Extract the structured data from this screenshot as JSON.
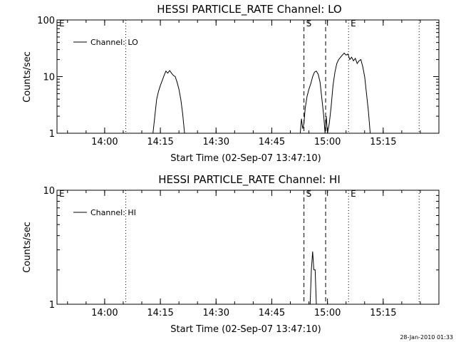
{
  "footer": {
    "timestamp": "28-Jan-2010 01:33"
  },
  "chart_data": [
    {
      "type": "line",
      "title": "HESSI PARTICLE_RATE Channel: LO",
      "xlabel": "Start Time (02-Sep-07 13:47:10)",
      "ylabel": "Counts/sec",
      "yscale": "log",
      "ylim": [
        1,
        100
      ],
      "yticks": [
        {
          "value": 1,
          "label": "1"
        },
        {
          "value": 10,
          "label": "10"
        },
        {
          "value": 100,
          "label": "100"
        }
      ],
      "xlim": [
        "13:47:10",
        "15:30:00"
      ],
      "xticks": [
        "14:00",
        "14:15",
        "14:30",
        "14:45",
        "15:00",
        "15:15"
      ],
      "legend": {
        "position": "top-left",
        "entries": [
          "Channel: LO"
        ]
      },
      "markers": [
        {
          "label": "E",
          "time": "13:47:10",
          "style": "dotted"
        },
        {
          "label": "",
          "time": "14:05:40",
          "style": "dotted"
        },
        {
          "label": "S",
          "time": "14:53:40",
          "style": "dashed"
        },
        {
          "label": "",
          "time": "14:59:30",
          "style": "dashed"
        },
        {
          "label": "E",
          "time": "15:05:40",
          "style": "dotted"
        },
        {
          "label": "",
          "time": "15:24:40",
          "style": "dotted"
        }
      ],
      "series": [
        {
          "name": "Channel: LO",
          "segments": [
            [
              [
                "14:13:00",
                1
              ],
              [
                "14:13:30",
                2.0
              ],
              [
                "14:14:00",
                4.0
              ],
              [
                "14:14:30",
                5.5
              ],
              [
                "14:15:00",
                7.0
              ],
              [
                "14:15:30",
                8.5
              ],
              [
                "14:16:00",
                10.5
              ],
              [
                "14:16:30",
                12.5
              ],
              [
                "14:17:00",
                11.5
              ],
              [
                "14:17:30",
                12.8
              ],
              [
                "14:18:00",
                11.5
              ],
              [
                "14:18:30",
                10.5
              ],
              [
                "14:19:00",
                10.0
              ],
              [
                "14:19:30",
                8.0
              ],
              [
                "14:20:00",
                6.0
              ],
              [
                "14:20:30",
                4.0
              ],
              [
                "14:21:00",
                2.2
              ],
              [
                "14:21:30",
                1
              ]
            ],
            [
              [
                "14:52:40",
                1
              ],
              [
                "14:53:00",
                1.8
              ],
              [
                "14:53:20",
                1.2
              ],
              [
                "14:53:40",
                1.5
              ],
              [
                "14:54:00",
                2.8
              ],
              [
                "14:54:30",
                4.5
              ],
              [
                "14:55:00",
                6.0
              ],
              [
                "14:55:30",
                7.5
              ],
              [
                "14:56:00",
                10.0
              ],
              [
                "14:56:30",
                12.0
              ],
              [
                "14:57:00",
                12.5
              ],
              [
                "14:57:30",
                11.0
              ],
              [
                "14:58:00",
                8.0
              ],
              [
                "14:58:30",
                4.0
              ],
              [
                "14:59:00",
                2.0
              ],
              [
                "14:59:20",
                1
              ],
              [
                "14:59:40",
                2.0
              ],
              [
                "15:00:00",
                1
              ],
              [
                "15:00:30",
                1.5
              ],
              [
                "15:01:00",
                3.0
              ],
              [
                "15:01:30",
                7.0
              ],
              [
                "15:02:00",
                12.0
              ],
              [
                "15:02:30",
                17.0
              ],
              [
                "15:03:00",
                20.0
              ],
              [
                "15:03:30",
                22.0
              ],
              [
                "15:04:00",
                24.0
              ],
              [
                "15:04:30",
                26.0
              ],
              [
                "15:05:00",
                24.0
              ],
              [
                "15:05:30",
                25.0
              ],
              [
                "15:06:00",
                20.0
              ],
              [
                "15:06:30",
                22.0
              ],
              [
                "15:07:00",
                19.0
              ],
              [
                "15:07:30",
                21.0
              ],
              [
                "15:08:00",
                17.0
              ],
              [
                "15:08:30",
                19.0
              ],
              [
                "15:09:00",
                20.0
              ],
              [
                "15:09:30",
                15.0
              ],
              [
                "15:10:00",
                10.0
              ],
              [
                "15:10:30",
                5.0
              ],
              [
                "15:11:00",
                2.5
              ],
              [
                "15:11:30",
                1
              ]
            ]
          ]
        }
      ]
    },
    {
      "type": "line",
      "title": "HESSI PARTICLE_RATE Channel: HI",
      "xlabel": "Start Time (02-Sep-07 13:47:10)",
      "ylabel": "Counts/sec",
      "yscale": "log",
      "ylim": [
        1,
        10
      ],
      "yticks": [
        {
          "value": 1,
          "label": "1"
        },
        {
          "value": 10,
          "label": "10"
        }
      ],
      "xlim": [
        "13:47:10",
        "15:30:00"
      ],
      "xticks": [
        "14:00",
        "14:15",
        "14:30",
        "14:45",
        "15:00",
        "15:15"
      ],
      "legend": {
        "position": "top-left",
        "entries": [
          "Channel: HI"
        ]
      },
      "markers": [
        {
          "label": "E",
          "time": "13:47:10",
          "style": "dotted"
        },
        {
          "label": "",
          "time": "14:05:40",
          "style": "dotted"
        },
        {
          "label": "S",
          "time": "14:53:40",
          "style": "dashed"
        },
        {
          "label": "",
          "time": "14:59:30",
          "style": "dashed"
        },
        {
          "label": "E",
          "time": "15:05:40",
          "style": "dotted"
        },
        {
          "label": "",
          "time": "15:24:40",
          "style": "dotted"
        }
      ],
      "series": [
        {
          "name": "Channel: HI",
          "segments": [
            [
              [
                "14:55:20",
                1
              ],
              [
                "14:55:40",
                2.0
              ],
              [
                "14:56:00",
                2.9
              ],
              [
                "14:56:20",
                2.0
              ],
              [
                "14:56:40",
                2.0
              ],
              [
                "14:57:00",
                1
              ]
            ]
          ]
        }
      ]
    }
  ]
}
